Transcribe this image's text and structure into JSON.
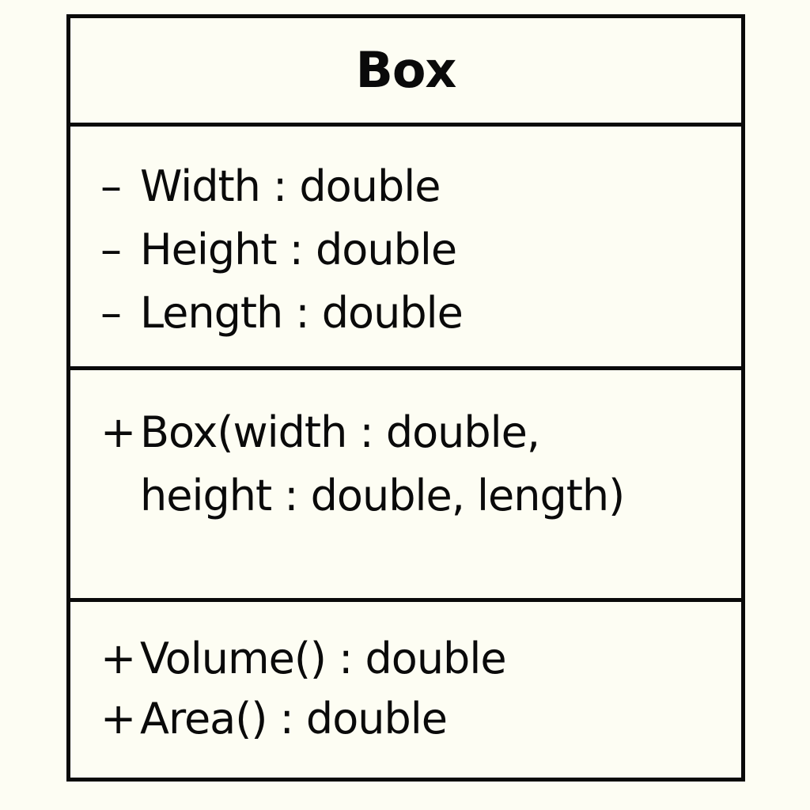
{
  "class_name": "Box",
  "attributes": [
    {
      "visibility": "–",
      "text": "Width : double"
    },
    {
      "visibility": "–",
      "text": "Height : double"
    },
    {
      "visibility": "–",
      "text": "Length : double"
    }
  ],
  "constructor": {
    "visibility": "+",
    "line1": "Box(width : double,",
    "line2": "height : double, length)"
  },
  "operations": [
    {
      "visibility": "+",
      "text": "Volume() : double"
    },
    {
      "visibility": "+",
      "text": "Area() : double"
    }
  ]
}
